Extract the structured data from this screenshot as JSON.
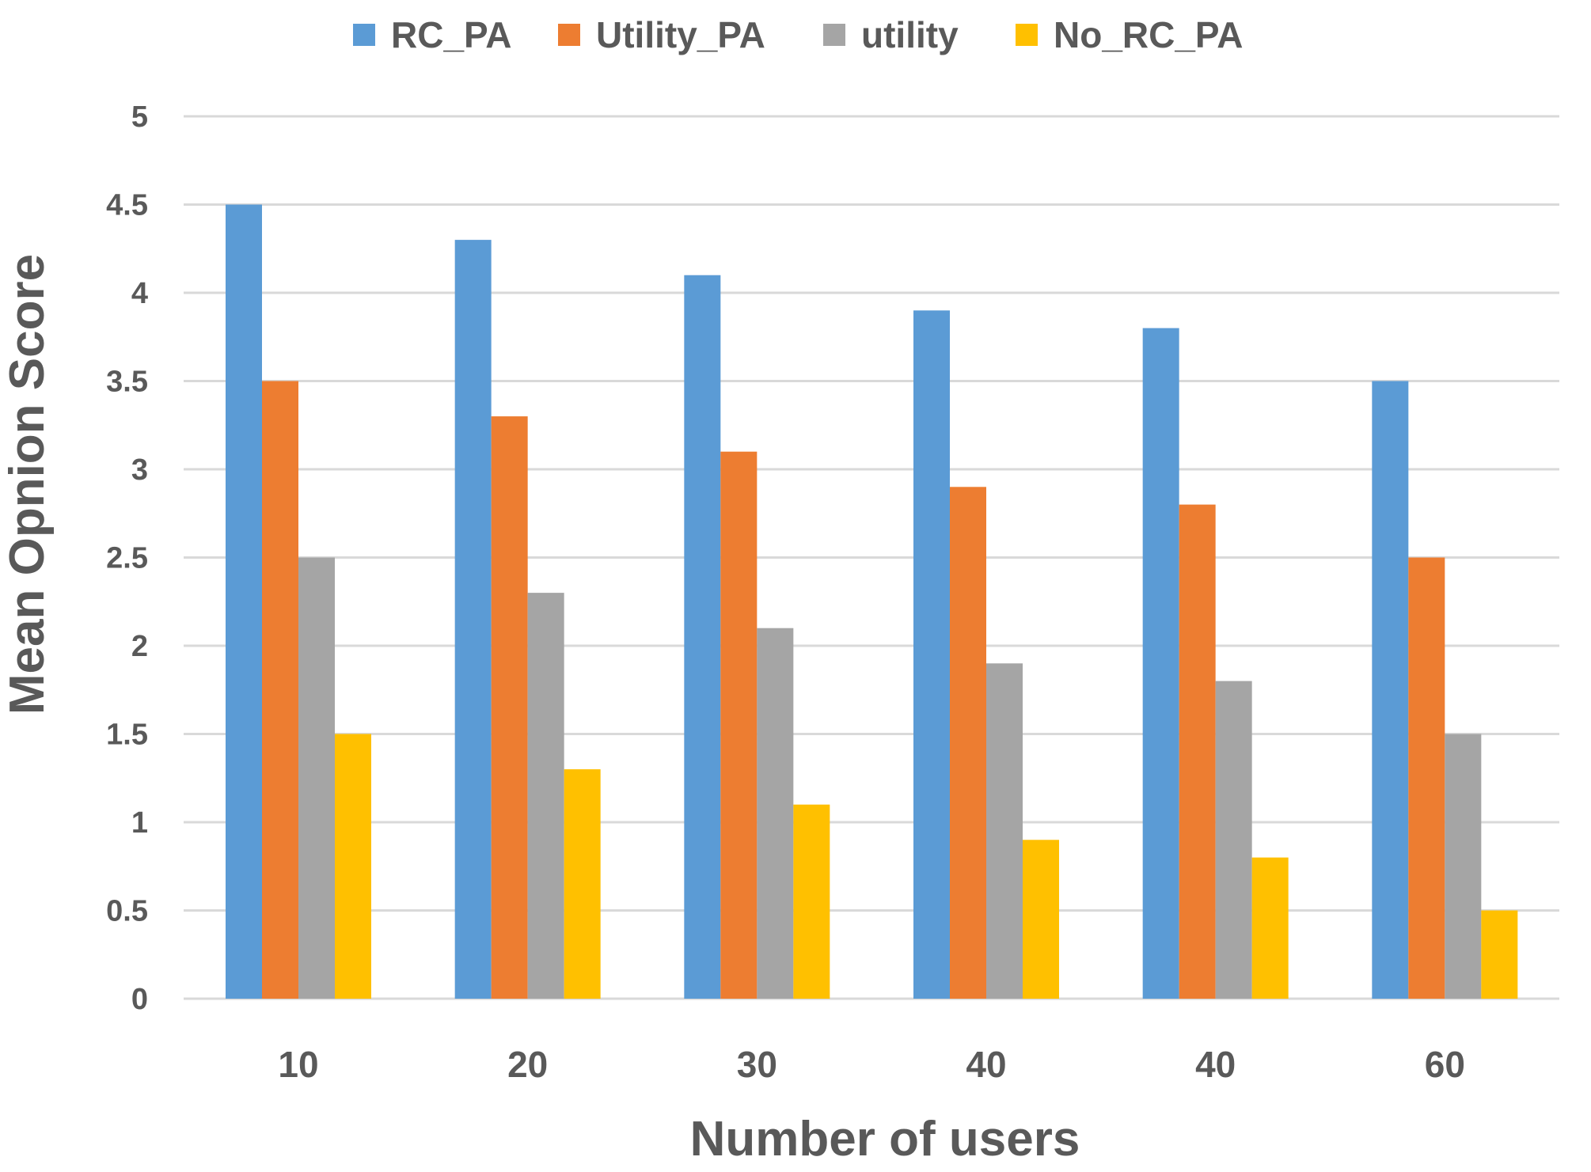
{
  "chart_data": {
    "type": "bar",
    "title": "",
    "xlabel": "Number of users",
    "ylabel": "Mean Opnion Score",
    "categories": [
      "10",
      "20",
      "30",
      "40",
      "40",
      "60"
    ],
    "ylim": [
      0,
      5
    ],
    "yticks": [
      "0",
      "0.5",
      "1",
      "1.5",
      "2",
      "2.5",
      "3",
      "3.5",
      "4",
      "4.5",
      "5"
    ],
    "grid": true,
    "legend_position": "top",
    "series": [
      {
        "name": "RC_PA",
        "color": "#5b9bd5",
        "values": [
          4.5,
          4.3,
          4.1,
          3.9,
          3.8,
          3.5
        ]
      },
      {
        "name": "Utility_PA",
        "color": "#ed7d31",
        "values": [
          3.5,
          3.3,
          3.1,
          2.9,
          2.8,
          2.5
        ]
      },
      {
        "name": "utility",
        "color": "#a5a5a5",
        "values": [
          2.5,
          2.3,
          2.1,
          1.9,
          1.8,
          1.5
        ]
      },
      {
        "name": "No_RC_PA",
        "color": "#ffc000",
        "values": [
          1.5,
          1.3,
          1.1,
          0.9,
          0.8,
          0.5
        ]
      }
    ]
  }
}
